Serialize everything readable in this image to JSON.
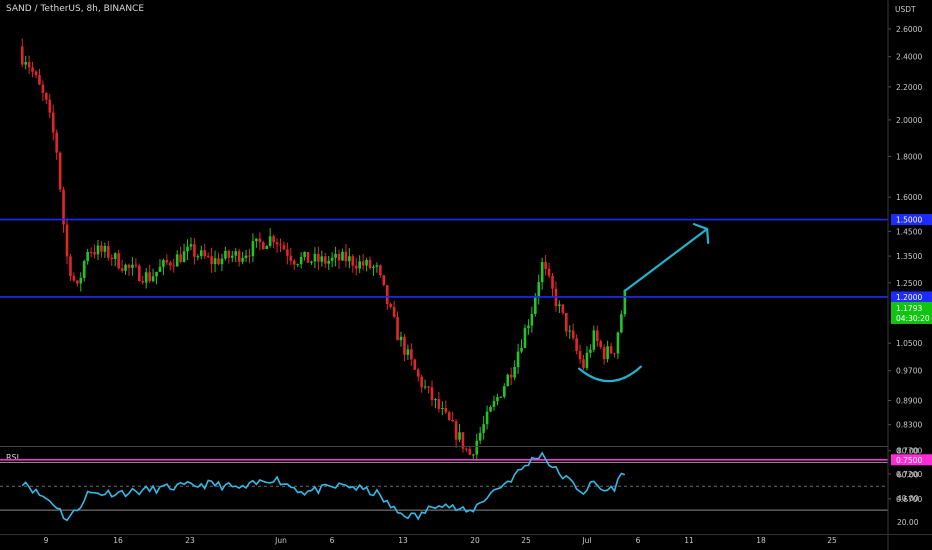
{
  "header": {
    "symbol_title": "SAND / TetherUS, 8h, BINANCE",
    "currency_label": "USDT"
  },
  "colors": {
    "background": "#000000",
    "up_candle": "#26c226",
    "down_candle": "#e0262b",
    "resistance_line": "#1d2bff",
    "support_line": "#ff2bd6",
    "annotation": "#1fb4cc",
    "rsi_line": "#34b9e4",
    "last_price_badge": "#11c411"
  },
  "chart_data": [
    {
      "type": "candlestick",
      "title": "SAND / TetherUS, 8h, BINANCE",
      "y_axis": {
        "scale": "log",
        "ticks": [
          "2.6000",
          "2.4000",
          "2.2000",
          "2.0000",
          "1.8000",
          "1.6000",
          "1.4500",
          "1.3500",
          "1.2500",
          "1.0500",
          "0.9700",
          "0.8900",
          "0.8300",
          "0.7700",
          "0.7200",
          "0.6700"
        ],
        "range": [
          0.65,
          2.85
        ]
      },
      "x_axis": {
        "ticks": [
          "9",
          "16",
          "23",
          "Jun",
          "6",
          "13",
          "20",
          "25",
          "Jul",
          "6",
          "11",
          "18",
          "25"
        ]
      },
      "anchors": [
        {
          "date": "May 7",
          "price": 2.4
        },
        {
          "date": "May 8",
          "price": 2.25
        },
        {
          "date": "May 9",
          "price": 2.1
        },
        {
          "date": "May 10",
          "price": 1.85
        },
        {
          "date": "May 11",
          "price": 1.35
        },
        {
          "date": "May 12",
          "price": 1.22
        },
        {
          "date": "May 13",
          "price": 1.38
        },
        {
          "date": "May 15",
          "price": 1.36
        },
        {
          "date": "May 17",
          "price": 1.3
        },
        {
          "date": "May 19",
          "price": 1.27
        },
        {
          "date": "May 21",
          "price": 1.33
        },
        {
          "date": "May 23",
          "price": 1.37
        },
        {
          "date": "May 25",
          "price": 1.33
        },
        {
          "date": "May 28",
          "price": 1.36
        },
        {
          "date": "May 31",
          "price": 1.43
        },
        {
          "date": "Jun 2",
          "price": 1.34
        },
        {
          "date": "Jun 5",
          "price": 1.33
        },
        {
          "date": "Jun 7",
          "price": 1.34
        },
        {
          "date": "Jun 10",
          "price": 1.3
        },
        {
          "date": "Jun 12",
          "price": 1.08
        },
        {
          "date": "Jun 14",
          "price": 0.95
        },
        {
          "date": "Jun 16",
          "price": 0.87
        },
        {
          "date": "Jun 18",
          "price": 0.8
        },
        {
          "date": "Jun 19",
          "price": 0.76
        },
        {
          "date": "Jun 21",
          "price": 0.86
        },
        {
          "date": "Jun 23",
          "price": 0.97
        },
        {
          "date": "Jun 25",
          "price": 1.15
        },
        {
          "date": "Jun 26",
          "price": 1.32
        },
        {
          "date": "Jun 27",
          "price": 1.22
        },
        {
          "date": "Jun 29",
          "price": 1.05
        },
        {
          "date": "Jun 30",
          "price": 0.98
        },
        {
          "date": "Jul 1",
          "price": 1.07
        },
        {
          "date": "Jul 2",
          "price": 1.02
        },
        {
          "date": "Jul 3",
          "price": 1.03
        },
        {
          "date": "Jul 4",
          "price": 1.2
        }
      ],
      "horizontal_levels": [
        {
          "price": 1.5,
          "label": "1.5000",
          "color": "#1d2bff"
        },
        {
          "price": 1.2,
          "label": "1.2000",
          "color": "#1d2bff"
        },
        {
          "price": 0.75,
          "label": "0.7500",
          "color": "#ff2bd6"
        }
      ],
      "last_price": {
        "value": "1.1793",
        "countdown": "04:30:20"
      },
      "annotations": [
        {
          "type": "arrow",
          "from": {
            "date": "Jul 4",
            "price": 1.22
          },
          "to": {
            "date": "Jul 12",
            "price": 1.46
          }
        },
        {
          "type": "arc",
          "description": "rounded bottom",
          "from": {
            "date": "Jun 30",
            "price": 0.97
          },
          "to": {
            "date": "Jul 5",
            "price": 0.97
          }
        }
      ]
    },
    {
      "type": "line",
      "title": "RSI",
      "y_axis": {
        "ticks": [
          "80.00",
          "60.00",
          "40.00",
          "20.00"
        ],
        "range": [
          14,
          86
        ]
      },
      "bands": {
        "upper": 70,
        "middle": 50,
        "lower": 30
      },
      "anchors": [
        {
          "date": "May 7",
          "value": 54
        },
        {
          "date": "May 8",
          "value": 45
        },
        {
          "date": "May 9",
          "value": 40
        },
        {
          "date": "May 10",
          "value": 34
        },
        {
          "date": "May 11",
          "value": 22
        },
        {
          "date": "May 12",
          "value": 30
        },
        {
          "date": "May 13",
          "value": 44
        },
        {
          "date": "May 17",
          "value": 45
        },
        {
          "date": "May 21",
          "value": 49
        },
        {
          "date": "May 25",
          "value": 52
        },
        {
          "date": "May 28",
          "value": 48
        },
        {
          "date": "May 31",
          "value": 57
        },
        {
          "date": "Jun 3",
          "value": 45
        },
        {
          "date": "Jun 7",
          "value": 51
        },
        {
          "date": "Jun 10",
          "value": 44
        },
        {
          "date": "Jun 12",
          "value": 28
        },
        {
          "date": "Jun 14",
          "value": 24
        },
        {
          "date": "Jun 16",
          "value": 37
        },
        {
          "date": "Jun 18",
          "value": 30
        },
        {
          "date": "Jun 19",
          "value": 28
        },
        {
          "date": "Jun 21",
          "value": 44
        },
        {
          "date": "Jun 23",
          "value": 56
        },
        {
          "date": "Jun 25",
          "value": 72
        },
        {
          "date": "Jun 26",
          "value": 78
        },
        {
          "date": "Jun 27",
          "value": 66
        },
        {
          "date": "Jun 29",
          "value": 52
        },
        {
          "date": "Jun 30",
          "value": 45
        },
        {
          "date": "Jul 1",
          "value": 53
        },
        {
          "date": "Jul 2",
          "value": 46
        },
        {
          "date": "Jul 3",
          "value": 49
        },
        {
          "date": "Jul 4",
          "value": 63
        }
      ]
    }
  ]
}
